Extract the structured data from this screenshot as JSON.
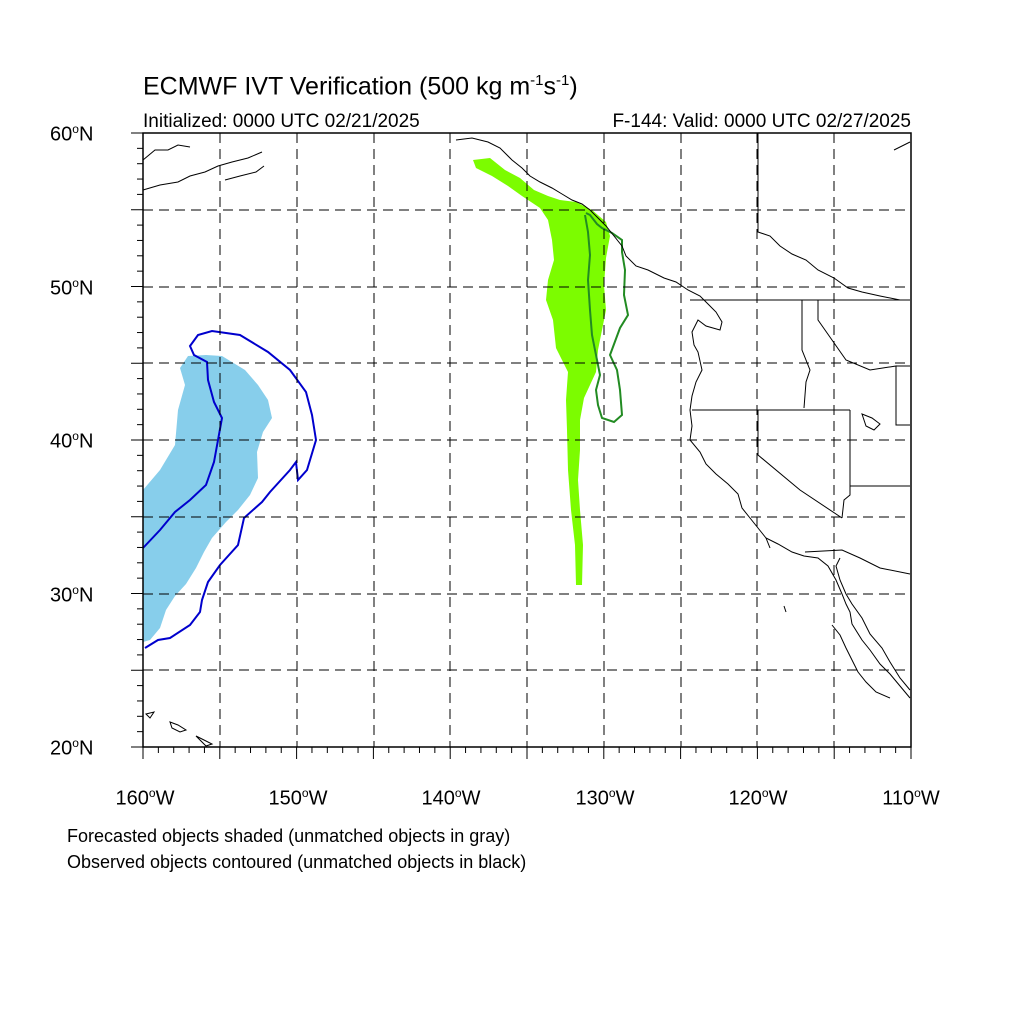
{
  "title": {
    "prefix": "ECMWF IVT Verification (500 kg m",
    "sup1": "-1",
    "mid": "s",
    "sup2": "-1",
    "suffix": ")"
  },
  "subtitle_left": "Initialized: 0000 UTC 02/21/2025",
  "subtitle_right": "F-144: Valid: 0000 UTC 02/27/2025",
  "lat_labels": [
    "60",
    "50",
    "40",
    "30",
    "20"
  ],
  "lat_suffix": "N",
  "lon_labels": [
    "160",
    "150",
    "140",
    "130",
    "120",
    "110"
  ],
  "lon_suffix": "W",
  "notes": [
    "Forecasted objects shaded (unmatched objects in gray)",
    "Observed objects contoured (unmatched objects in black)"
  ],
  "colors": {
    "forecast_object_1": "#87ceeb",
    "observed_object_1": "#0000cd",
    "forecast_object_2": "#7cfc00",
    "observed_object_2": "#228b22",
    "coastline": "#000000",
    "grid": "#000000"
  },
  "map_extent": {
    "lon_min": -160,
    "lon_max": -110,
    "lat_min": 20,
    "lat_max": 60
  }
}
